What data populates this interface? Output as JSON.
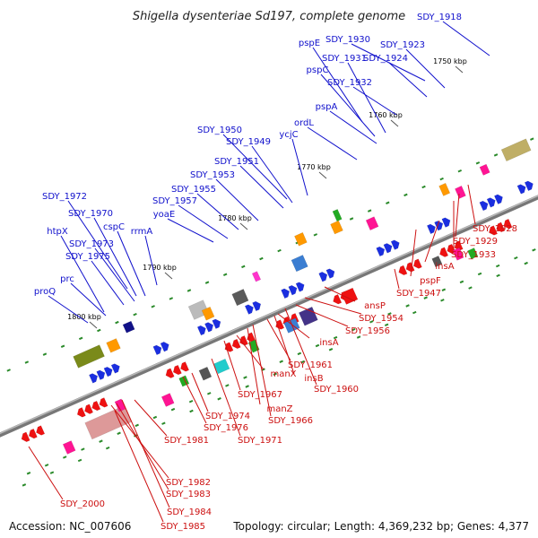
{
  "title": "Shigella dysenteriae Sd197, complete genome",
  "footer": {
    "accession": "Accession: NC_007606",
    "topology": "Topology: circular; Length: 4,369,232 bp; Genes: 4,377"
  },
  "colors": {
    "top_label": "#1010cc",
    "bottom_label": "#cc1010",
    "backbone": "#777777",
    "tick_mark": "#2a8a2a"
  },
  "scale_ticks": [
    "1750 kbp",
    "1760 kbp",
    "1770 kbp",
    "1780 kbp",
    "1790 kbp",
    "1800 kbp"
  ],
  "top_labels": [
    "SDY_1918",
    "pspE",
    "SDY_1930",
    "SDY_1923",
    "SDY_1931",
    "SDY_1924",
    "pspC",
    "SDY_1932",
    "pspA",
    "ordL",
    "SDY_1950",
    "ycjC",
    "SDY_1949",
    "SDY_1951",
    "SDY_1953",
    "SDY_1955",
    "SDY_1957",
    "yoaE",
    "SDY_1972",
    "SDY_1970",
    "cspC",
    "rrmA",
    "htpX",
    "SDY_1973",
    "SDY_1975",
    "prc",
    "proQ"
  ],
  "bottom_labels": [
    "SDY_1928",
    "SDY_1929",
    "SDY_1933",
    "insA",
    "pspF",
    "SDY_1947",
    "ansP",
    "SDY_1954",
    "SDY_1956",
    "insA",
    "SDY_1961",
    "insB",
    "SDY_1960",
    "manX",
    "SDY_1967",
    "manZ",
    "SDY_1966",
    "SDY_1974",
    "SDY_1971",
    "SDY_1976",
    "SDY_1981",
    "SDY_1982",
    "SDY_1983",
    "SDY_1984",
    "SDY_1985",
    "SDY_2000"
  ]
}
